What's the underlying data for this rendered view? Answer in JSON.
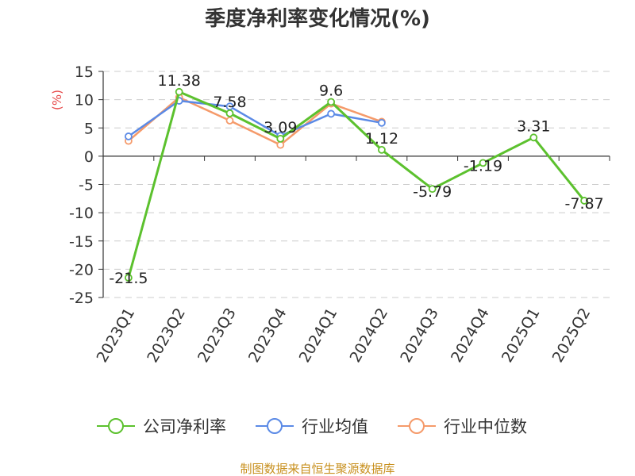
{
  "chart_data": {
    "type": "line",
    "title": "季度净利率变化情况(%)",
    "y_unit": "(%)",
    "categories": [
      "2023Q1",
      "2023Q2",
      "2023Q3",
      "2023Q4",
      "2024Q1",
      "2024Q2",
      "2024Q3",
      "2024Q4",
      "2025Q1",
      "2025Q2"
    ],
    "ylim": [
      -25,
      15
    ],
    "yticks": [
      15,
      10,
      5,
      0,
      -5,
      -10,
      -15,
      -20,
      -25
    ],
    "grid": true,
    "legend_position": "bottom",
    "series": [
      {
        "name": "公司净利率",
        "color": "#5cc12e",
        "values": [
          -21.5,
          11.38,
          7.58,
          3.09,
          9.6,
          1.12,
          -5.79,
          -1.19,
          3.31,
          -7.87
        ],
        "labels": [
          "-21.5",
          "11.38",
          "7.58",
          "3.09",
          "9.6",
          "1.12",
          "-5.79",
          "-1.19",
          "3.31",
          "-7.87"
        ]
      },
      {
        "name": "行业均值",
        "color": "#5b8ae6",
        "values": [
          3.5,
          9.8,
          8.8,
          3.6,
          7.5,
          5.9,
          null,
          null,
          null,
          null
        ]
      },
      {
        "name": "行业中位数",
        "color": "#f59a6a",
        "values": [
          2.7,
          10.4,
          6.3,
          2.0,
          9.3,
          6.1,
          null,
          null,
          null,
          null
        ]
      }
    ]
  },
  "source": "制图数据来自恒生聚源数据库"
}
